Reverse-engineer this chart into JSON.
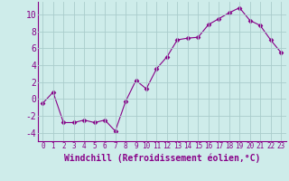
{
  "x": [
    0,
    1,
    2,
    3,
    4,
    5,
    6,
    7,
    8,
    9,
    10,
    11,
    12,
    13,
    14,
    15,
    16,
    17,
    18,
    19,
    20,
    21,
    22,
    23
  ],
  "y": [
    -0.5,
    0.8,
    -2.8,
    -2.8,
    -2.5,
    -2.8,
    -2.5,
    -3.8,
    -0.3,
    2.2,
    1.2,
    3.6,
    5.0,
    7.0,
    7.2,
    7.3,
    8.8,
    9.5,
    10.2,
    10.8,
    9.3,
    8.7,
    7.0,
    5.5
  ],
  "x_labels": [
    "0",
    "1",
    "2",
    "3",
    "4",
    "5",
    "6",
    "7",
    "8",
    "9",
    "10",
    "11",
    "12",
    "13",
    "14",
    "15",
    "16",
    "17",
    "18",
    "19",
    "20",
    "21",
    "22",
    "23"
  ],
  "xlabel": "Windchill (Refroidissement éolien,°C)",
  "ylim": [
    -5,
    11.5
  ],
  "yticks": [
    -4,
    -2,
    0,
    2,
    4,
    6,
    8,
    10
  ],
  "line_color": "#880088",
  "marker": "D",
  "marker_size": 2.5,
  "bg_color": "#ceecea",
  "grid_color": "#aacccc",
  "xlabel_fontsize": 7,
  "ytick_fontsize": 7,
  "xtick_fontsize": 5.5
}
